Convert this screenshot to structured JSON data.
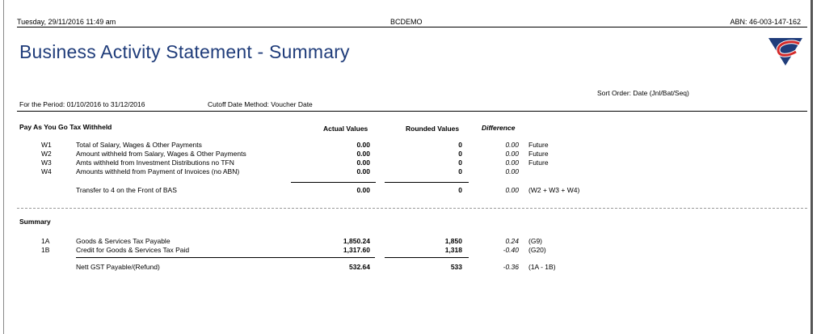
{
  "header": {
    "datetime": "Tuesday, 29/11/2016 11:49 am",
    "company": "BCDEMO",
    "abn": "ABN: 46-003-147-162"
  },
  "title": "Business Activity Statement - Summary",
  "sort_order": "Sort Order: Date (Jnl/Bat/Seq)",
  "period": "For the Period: 01/10/2016 to 31/12/2016",
  "cutoff": "Cutoff Date Method: Voucher Date",
  "payg": {
    "heading": "Pay As You Go Tax Withheld",
    "columns": {
      "actual": "Actual Values",
      "rounded": "Rounded Values",
      "difference": "Difference"
    },
    "rows": [
      {
        "code": "W1",
        "desc": "Total of Salary, Wages & Other Payments",
        "actual": "0.00",
        "rounded": "0",
        "diff": "0.00",
        "note": "Future"
      },
      {
        "code": "W2",
        "desc": "Amount withheld from Salary, Wages & Other Payments",
        "actual": "0.00",
        "rounded": "0",
        "diff": "0.00",
        "note": "Future"
      },
      {
        "code": "W3",
        "desc": "Amts withheld from Investment Distributions no TFN",
        "actual": "0.00",
        "rounded": "0",
        "diff": "0.00",
        "note": "Future"
      },
      {
        "code": "W4",
        "desc": "Amounts withheld from Payment of Invoices (no ABN)",
        "actual": "0.00",
        "rounded": "0",
        "diff": "0.00",
        "note": ""
      }
    ],
    "total": {
      "desc": "Transfer to 4 on the Front of BAS",
      "actual": "0.00",
      "rounded": "0",
      "diff": "0.00",
      "note": "(W2 + W3 + W4)"
    }
  },
  "summary": {
    "heading": "Summary",
    "rows": [
      {
        "code": "1A",
        "desc": "Goods & Services Tax Payable",
        "actual": "1,850.24",
        "rounded": "1,850",
        "diff": "0.24",
        "note": "(G9)"
      },
      {
        "code": "1B",
        "desc": "Credit for Goods & Services Tax Paid",
        "actual": "1,317.60",
        "rounded": "1,318",
        "diff": "-0.40",
        "note": "(G20)"
      }
    ],
    "total": {
      "desc": "Nett GST Payable/(Refund)",
      "actual": "532.64",
      "rounded": "533",
      "diff": "-0.36",
      "note": "(1A - 1B)"
    }
  }
}
